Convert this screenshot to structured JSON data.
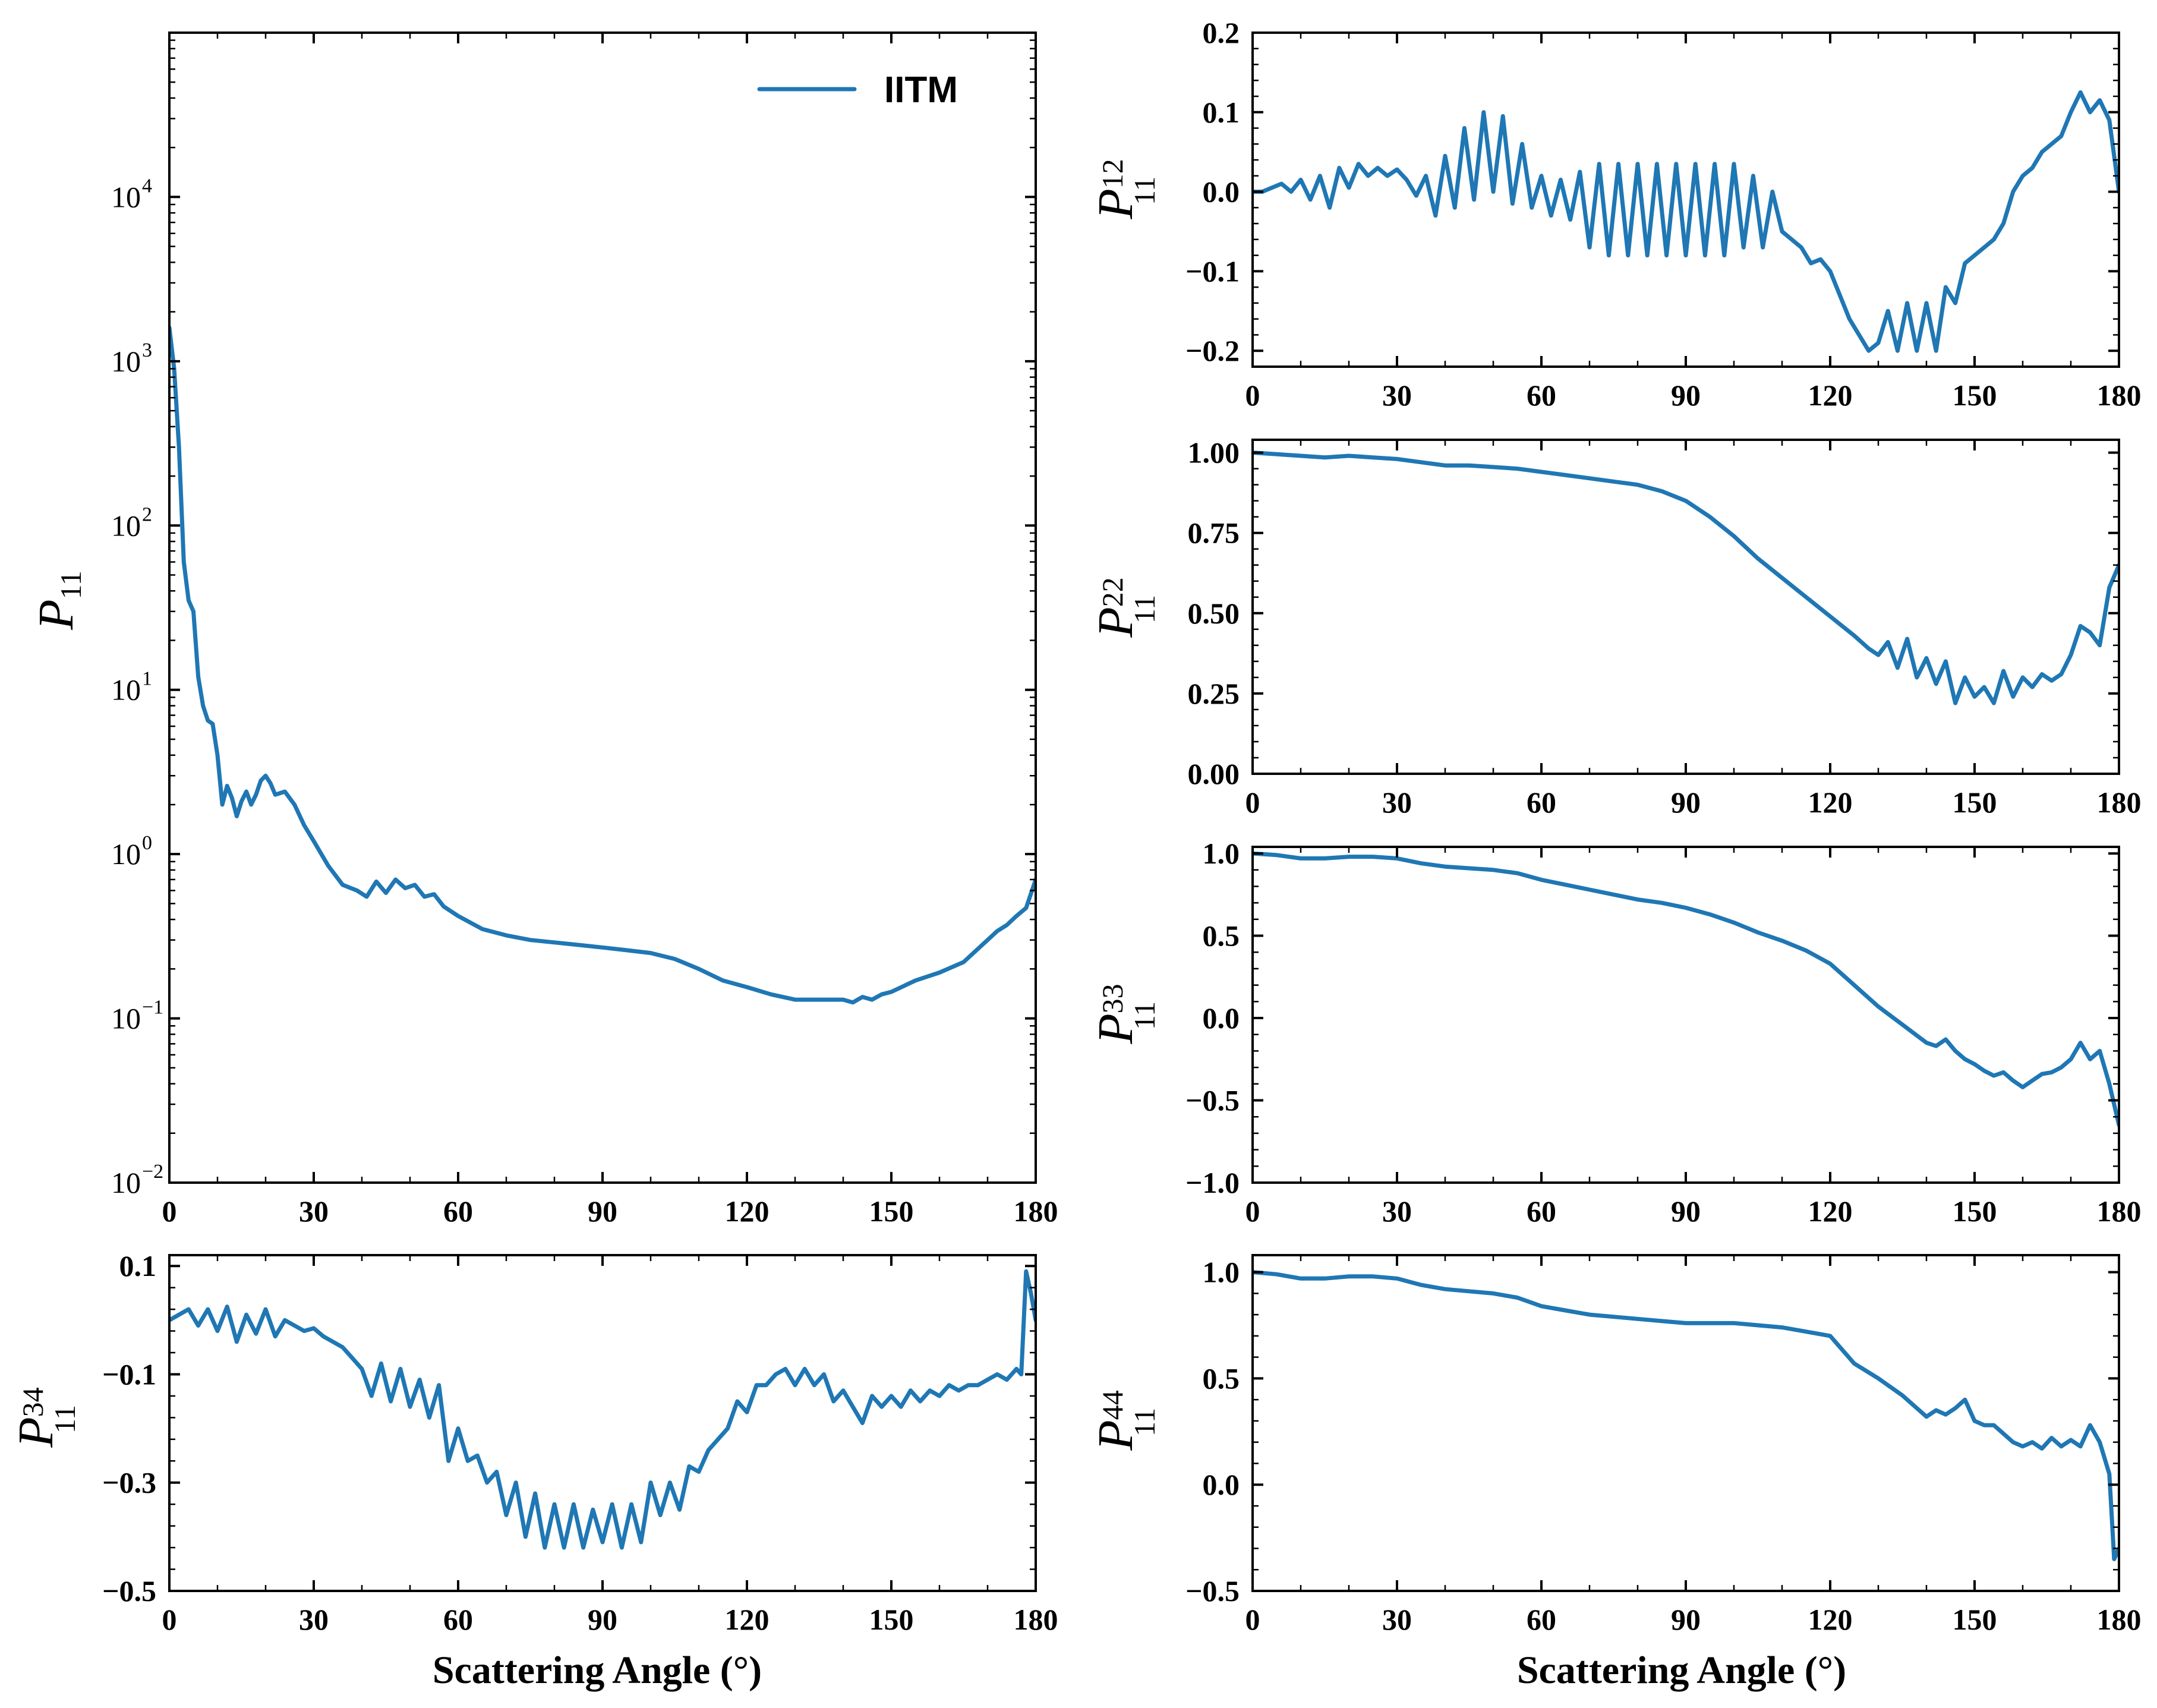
{
  "figure": {
    "legend_label": "IITM",
    "line_color": "#1f77b4",
    "x_axis_label": "Scattering Angle (°)"
  },
  "chart_data": [
    {
      "type": "line",
      "id": "p11",
      "ylabel": "P",
      "ylabel_sub": "11",
      "ylabel_sub_denominator": "",
      "yscale": "log",
      "xlim": [
        0,
        180
      ],
      "ylim": [
        0.01,
        100000
      ],
      "xticks": [
        0,
        30,
        60,
        90,
        120,
        150,
        180
      ],
      "xtick_labels": [
        "0",
        "30",
        "60",
        "90",
        "120",
        "150",
        "180"
      ],
      "yticks": [
        0.01,
        0.1,
        1,
        10,
        100,
        1000,
        10000
      ],
      "ytick_mantissa": [
        "10",
        "10",
        "10",
        "10",
        "10",
        "10",
        "10"
      ],
      "ytick_exponents": [
        "−2",
        "−1",
        "0",
        "1",
        "2",
        "3",
        "4"
      ],
      "legend": "IITM",
      "series": [
        {
          "name": "IITM",
          "x": [
            0,
            1,
            2,
            3,
            4,
            5,
            6,
            7,
            8,
            9,
            10,
            11,
            12,
            13,
            14,
            15,
            16,
            17,
            18,
            19,
            20,
            21,
            22,
            24,
            26,
            28,
            30,
            33,
            36,
            39,
            41,
            43,
            45,
            47,
            49,
            51,
            53,
            55,
            57,
            60,
            65,
            70,
            75,
            80,
            85,
            90,
            95,
            100,
            105,
            110,
            115,
            120,
            125,
            130,
            135,
            140,
            142,
            144,
            146,
            148,
            150,
            155,
            160,
            165,
            170,
            172,
            174,
            176,
            178,
            180
          ],
          "y": [
            1600,
            900,
            300,
            60,
            35,
            30,
            12,
            8,
            6.5,
            6.2,
            4,
            2.0,
            2.6,
            2.2,
            1.7,
            2.1,
            2.4,
            2.0,
            2.3,
            2.8,
            3.0,
            2.7,
            2.3,
            2.4,
            2.0,
            1.5,
            1.2,
            0.85,
            0.65,
            0.6,
            0.55,
            0.68,
            0.58,
            0.7,
            0.62,
            0.65,
            0.55,
            0.57,
            0.48,
            0.42,
            0.35,
            0.32,
            0.3,
            0.29,
            0.28,
            0.27,
            0.26,
            0.25,
            0.23,
            0.2,
            0.17,
            0.155,
            0.14,
            0.13,
            0.13,
            0.13,
            0.125,
            0.135,
            0.13,
            0.14,
            0.145,
            0.17,
            0.19,
            0.22,
            0.3,
            0.34,
            0.37,
            0.42,
            0.47,
            0.7
          ]
        }
      ]
    },
    {
      "type": "line",
      "id": "p12",
      "ylabel": "P",
      "ylabel_sub": "12",
      "ylabel_sub_denominator": "11",
      "yscale": "linear",
      "xlim": [
        0,
        180
      ],
      "ylim": [
        -0.22,
        0.2
      ],
      "xticks": [
        0,
        30,
        60,
        90,
        120,
        150,
        180
      ],
      "xtick_labels": [
        "0",
        "30",
        "60",
        "90",
        "120",
        "150",
        "180"
      ],
      "yticks": [
        -0.2,
        -0.1,
        0.0,
        0.1,
        0.2
      ],
      "ytick_labels": [
        "−0.2",
        "−0.1",
        "0.0",
        "0.1",
        "0.2"
      ],
      "series": [
        {
          "name": "IITM",
          "x": [
            0,
            2,
            4,
            6,
            8,
            10,
            12,
            14,
            16,
            18,
            20,
            22,
            24,
            26,
            28,
            30,
            32,
            34,
            36,
            38,
            40,
            42,
            44,
            46,
            48,
            50,
            52,
            54,
            56,
            58,
            60,
            62,
            64,
            66,
            68,
            70,
            72,
            74,
            76,
            78,
            80,
            82,
            84,
            86,
            88,
            90,
            92,
            94,
            96,
            98,
            100,
            102,
            104,
            106,
            108,
            110,
            112,
            114,
            116,
            118,
            120,
            122,
            124,
            126,
            128,
            130,
            132,
            134,
            136,
            138,
            140,
            142,
            144,
            146,
            148,
            150,
            152,
            154,
            156,
            158,
            160,
            162,
            164,
            166,
            168,
            170,
            172,
            174,
            176,
            178,
            180
          ],
          "y": [
            0.0,
            0.0,
            0.005,
            0.01,
            0.0,
            0.015,
            -0.01,
            0.02,
            -0.02,
            0.03,
            0.005,
            0.035,
            0.02,
            0.03,
            0.02,
            0.028,
            0.015,
            -0.005,
            0.02,
            -0.03,
            0.045,
            -0.02,
            0.08,
            -0.01,
            0.1,
            0.0,
            0.095,
            -0.015,
            0.06,
            -0.02,
            0.02,
            -0.03,
            0.015,
            -0.035,
            0.025,
            -0.07,
            0.035,
            -0.08,
            0.035,
            -0.08,
            0.035,
            -0.08,
            0.035,
            -0.08,
            0.035,
            -0.08,
            0.035,
            -0.08,
            0.035,
            -0.08,
            0.035,
            -0.07,
            0.02,
            -0.07,
            0.0,
            -0.05,
            -0.06,
            -0.07,
            -0.09,
            -0.085,
            -0.1,
            -0.13,
            -0.16,
            -0.18,
            -0.2,
            -0.19,
            -0.15,
            -0.2,
            -0.14,
            -0.2,
            -0.14,
            -0.2,
            -0.12,
            -0.14,
            -0.09,
            -0.08,
            -0.07,
            -0.06,
            -0.04,
            0.0,
            0.02,
            0.03,
            0.05,
            0.06,
            0.07,
            0.1,
            0.125,
            0.1,
            0.115,
            0.09,
            0.0
          ]
        }
      ]
    },
    {
      "type": "line",
      "id": "p22",
      "ylabel": "P",
      "ylabel_sub": "22",
      "ylabel_sub_denominator": "11",
      "yscale": "linear",
      "xlim": [
        0,
        180
      ],
      "ylim": [
        0.0,
        1.04
      ],
      "xticks": [
        0,
        30,
        60,
        90,
        120,
        150,
        180
      ],
      "xtick_labels": [
        "0",
        "30",
        "60",
        "90",
        "120",
        "150",
        "180"
      ],
      "yticks": [
        0.0,
        0.25,
        0.5,
        0.75,
        1.0
      ],
      "ytick_labels": [
        "0.00",
        "0.25",
        "0.50",
        "0.75",
        "1.00"
      ],
      "series": [
        {
          "name": "IITM",
          "x": [
            0,
            5,
            10,
            15,
            20,
            25,
            30,
            35,
            40,
            45,
            50,
            55,
            60,
            65,
            70,
            75,
            80,
            85,
            90,
            95,
            100,
            105,
            110,
            115,
            120,
            125,
            128,
            130,
            132,
            134,
            136,
            138,
            140,
            142,
            144,
            146,
            148,
            150,
            152,
            154,
            156,
            158,
            160,
            162,
            164,
            166,
            168,
            170,
            172,
            174,
            176,
            178,
            180
          ],
          "y": [
            1.0,
            0.995,
            0.99,
            0.985,
            0.99,
            0.985,
            0.98,
            0.97,
            0.96,
            0.96,
            0.955,
            0.95,
            0.94,
            0.93,
            0.92,
            0.91,
            0.9,
            0.88,
            0.85,
            0.8,
            0.74,
            0.67,
            0.61,
            0.55,
            0.49,
            0.43,
            0.39,
            0.37,
            0.41,
            0.33,
            0.42,
            0.3,
            0.36,
            0.28,
            0.35,
            0.22,
            0.3,
            0.24,
            0.27,
            0.22,
            0.32,
            0.24,
            0.3,
            0.27,
            0.31,
            0.29,
            0.31,
            0.37,
            0.46,
            0.44,
            0.4,
            0.58,
            0.65
          ]
        }
      ]
    },
    {
      "type": "line",
      "id": "p33",
      "ylabel": "P",
      "ylabel_sub": "33",
      "ylabel_sub_denominator": "11",
      "yscale": "linear",
      "xlim": [
        0,
        180
      ],
      "ylim": [
        -1.0,
        1.04
      ],
      "xticks": [
        0,
        30,
        60,
        90,
        120,
        150,
        180
      ],
      "xtick_labels": [
        "0",
        "30",
        "60",
        "90",
        "120",
        "150",
        "180"
      ],
      "yticks": [
        -1.0,
        -0.5,
        0.0,
        0.5,
        1.0
      ],
      "ytick_labels": [
        "−1.0",
        "−0.5",
        "0.0",
        "0.5",
        "1.0"
      ],
      "series": [
        {
          "name": "IITM",
          "x": [
            0,
            5,
            10,
            15,
            20,
            25,
            30,
            35,
            40,
            45,
            50,
            55,
            60,
            65,
            70,
            75,
            80,
            85,
            90,
            95,
            100,
            105,
            110,
            115,
            120,
            125,
            130,
            135,
            140,
            142,
            144,
            146,
            148,
            150,
            152,
            154,
            156,
            158,
            160,
            162,
            164,
            166,
            168,
            170,
            172,
            174,
            176,
            178,
            180
          ],
          "y": [
            1.0,
            0.99,
            0.97,
            0.97,
            0.98,
            0.98,
            0.97,
            0.94,
            0.92,
            0.91,
            0.9,
            0.88,
            0.84,
            0.81,
            0.78,
            0.75,
            0.72,
            0.7,
            0.67,
            0.63,
            0.58,
            0.52,
            0.47,
            0.41,
            0.33,
            0.2,
            0.07,
            -0.04,
            -0.15,
            -0.17,
            -0.13,
            -0.2,
            -0.25,
            -0.28,
            -0.32,
            -0.35,
            -0.33,
            -0.38,
            -0.42,
            -0.38,
            -0.34,
            -0.33,
            -0.3,
            -0.25,
            -0.15,
            -0.25,
            -0.2,
            -0.4,
            -0.65
          ]
        }
      ]
    },
    {
      "type": "line",
      "id": "p34",
      "ylabel": "P",
      "ylabel_sub": "34",
      "ylabel_sub_denominator": "11",
      "yscale": "linear",
      "xlim": [
        0,
        180
      ],
      "ylim": [
        -0.5,
        0.12
      ],
      "xticks": [
        0,
        30,
        60,
        90,
        120,
        150,
        180
      ],
      "xtick_labels": [
        "0",
        "30",
        "60",
        "90",
        "120",
        "150",
        "180"
      ],
      "yticks": [
        -0.5,
        -0.3,
        -0.1,
        0.1
      ],
      "ytick_labels": [
        "−0.5",
        "−0.3",
        "−0.1",
        "0.1"
      ],
      "series": [
        {
          "name": "IITM",
          "x": [
            0,
            2,
            4,
            6,
            8,
            10,
            12,
            14,
            16,
            18,
            20,
            22,
            24,
            26,
            28,
            30,
            32,
            34,
            36,
            38,
            40,
            42,
            44,
            46,
            48,
            50,
            52,
            54,
            56,
            58,
            60,
            62,
            64,
            66,
            68,
            70,
            72,
            74,
            76,
            78,
            80,
            82,
            84,
            86,
            88,
            90,
            92,
            94,
            96,
            98,
            100,
            102,
            104,
            106,
            108,
            110,
            112,
            114,
            116,
            118,
            120,
            122,
            124,
            126,
            128,
            130,
            132,
            134,
            136,
            138,
            140,
            142,
            144,
            146,
            148,
            150,
            152,
            154,
            156,
            158,
            160,
            162,
            164,
            166,
            168,
            170,
            172,
            174,
            176,
            177,
            178,
            179,
            180
          ],
          "y": [
            0.0,
            0.01,
            0.02,
            -0.01,
            0.02,
            -0.02,
            0.025,
            -0.04,
            0.01,
            -0.025,
            0.02,
            -0.03,
            0.0,
            -0.01,
            -0.02,
            -0.015,
            -0.03,
            -0.04,
            -0.05,
            -0.07,
            -0.09,
            -0.14,
            -0.08,
            -0.15,
            -0.09,
            -0.16,
            -0.11,
            -0.18,
            -0.12,
            -0.26,
            -0.2,
            -0.26,
            -0.25,
            -0.3,
            -0.28,
            -0.36,
            -0.3,
            -0.4,
            -0.32,
            -0.42,
            -0.34,
            -0.42,
            -0.34,
            -0.42,
            -0.35,
            -0.41,
            -0.34,
            -0.42,
            -0.34,
            -0.41,
            -0.3,
            -0.36,
            -0.3,
            -0.35,
            -0.27,
            -0.28,
            -0.24,
            -0.22,
            -0.2,
            -0.15,
            -0.17,
            -0.12,
            -0.12,
            -0.1,
            -0.09,
            -0.12,
            -0.09,
            -0.12,
            -0.1,
            -0.15,
            -0.13,
            -0.16,
            -0.19,
            -0.14,
            -0.16,
            -0.14,
            -0.16,
            -0.13,
            -0.15,
            -0.13,
            -0.14,
            -0.12,
            -0.13,
            -0.12,
            -0.12,
            -0.11,
            -0.1,
            -0.11,
            -0.09,
            -0.1,
            0.09,
            0.05,
            0.0
          ]
        }
      ]
    },
    {
      "type": "line",
      "id": "p44",
      "ylabel": "P",
      "ylabel_sub": "44",
      "ylabel_sub_denominator": "11",
      "yscale": "linear",
      "xlim": [
        0,
        180
      ],
      "ylim": [
        -0.5,
        1.08
      ],
      "xticks": [
        0,
        30,
        60,
        90,
        120,
        150,
        180
      ],
      "xtick_labels": [
        "0",
        "30",
        "60",
        "90",
        "120",
        "150",
        "180"
      ],
      "yticks": [
        -0.5,
        0.0,
        0.5,
        1.0
      ],
      "ytick_labels": [
        "−0.5",
        "0.0",
        "0.5",
        "1.0"
      ],
      "series": [
        {
          "name": "IITM",
          "x": [
            0,
            5,
            10,
            15,
            20,
            25,
            30,
            35,
            40,
            45,
            50,
            55,
            60,
            65,
            70,
            75,
            80,
            85,
            90,
            95,
            100,
            105,
            110,
            115,
            120,
            125,
            130,
            135,
            140,
            142,
            144,
            146,
            148,
            150,
            152,
            154,
            156,
            158,
            160,
            162,
            164,
            166,
            168,
            170,
            172,
            174,
            176,
            178,
            179,
            180
          ],
          "y": [
            1.0,
            0.99,
            0.97,
            0.97,
            0.98,
            0.98,
            0.97,
            0.94,
            0.92,
            0.91,
            0.9,
            0.88,
            0.84,
            0.82,
            0.8,
            0.79,
            0.78,
            0.77,
            0.76,
            0.76,
            0.76,
            0.75,
            0.74,
            0.72,
            0.7,
            0.57,
            0.5,
            0.42,
            0.32,
            0.35,
            0.33,
            0.36,
            0.4,
            0.3,
            0.28,
            0.28,
            0.24,
            0.2,
            0.18,
            0.2,
            0.17,
            0.22,
            0.18,
            0.21,
            0.18,
            0.28,
            0.2,
            0.05,
            -0.35,
            -0.3
          ]
        }
      ]
    }
  ]
}
